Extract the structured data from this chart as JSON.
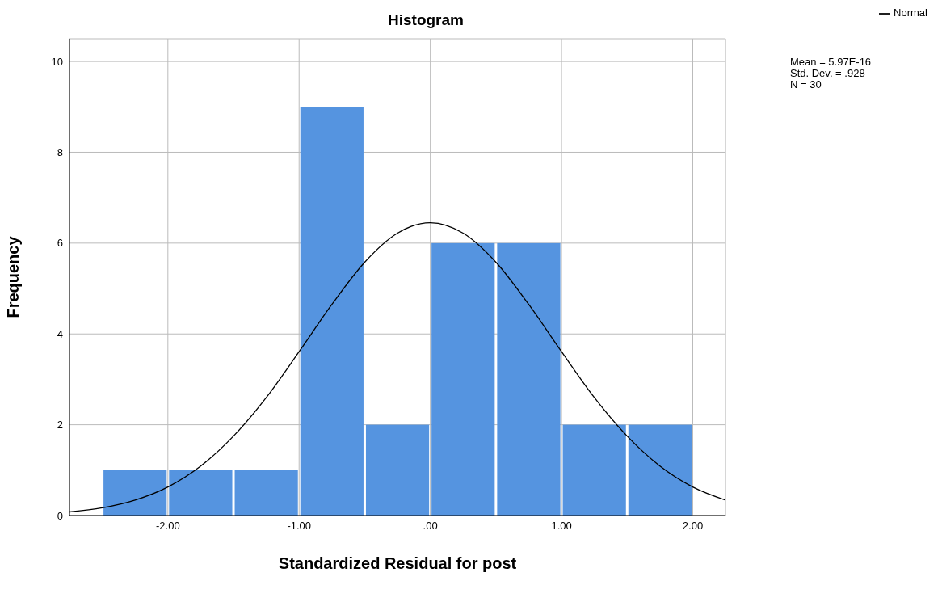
{
  "chart_data": {
    "type": "histogram",
    "title": "Histogram",
    "xlabel": "Standardized Residual for post",
    "ylabel": "Frequency",
    "bins": [
      -2.5,
      -2.0,
      -1.5,
      -1.0,
      -0.5,
      0.0,
      0.5,
      1.0,
      1.5,
      2.0
    ],
    "values": [
      1,
      1,
      1,
      9,
      2,
      6,
      6,
      2,
      2
    ],
    "color": "#5594e0",
    "series": [
      {
        "type": "line",
        "name": "Normal",
        "color": "#000000",
        "x": [
          -2.75,
          -2.5,
          -2.25,
          -2.0,
          -1.75,
          -1.5,
          -1.25,
          -1.0,
          -0.75,
          -0.5,
          -0.25,
          0.0,
          0.25,
          0.5,
          0.75,
          1.0,
          1.25,
          1.5,
          1.75,
          2.0,
          2.25
        ],
        "values": [
          0.08,
          0.17,
          0.34,
          0.63,
          1.09,
          1.75,
          2.6,
          3.61,
          4.65,
          5.58,
          6.22,
          6.45,
          6.22,
          5.58,
          4.65,
          3.61,
          2.6,
          1.75,
          1.09,
          0.63,
          0.34
        ]
      }
    ],
    "xlim": [
      -2.75,
      2.25
    ],
    "xticks": [
      {
        "value": -2,
        "label": "-2.00"
      },
      {
        "value": -1,
        "label": "-1.00"
      },
      {
        "value": 0,
        "label": ".00"
      },
      {
        "value": 1,
        "label": "1.00"
      },
      {
        "value": 2,
        "label": "2.00"
      }
    ],
    "ylim": [
      0,
      10.5
    ],
    "yticks": [
      0,
      2,
      4,
      6,
      8,
      10
    ],
    "grid": true,
    "legend": "top right",
    "annotations": [
      "Mean = 5.97E-16",
      "Std. Dev. = .928",
      "N = 30"
    ]
  }
}
